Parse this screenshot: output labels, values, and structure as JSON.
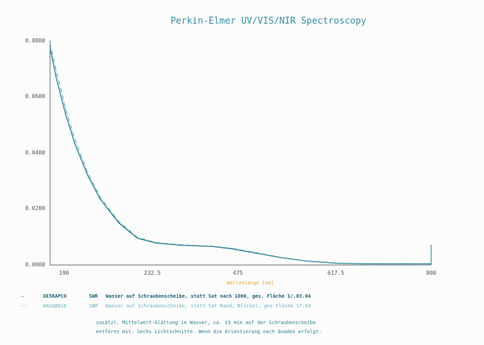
{
  "chart_data": {
    "type": "line",
    "title": "Perkin-Elmer UV/VIS/NIR Spectroscopy",
    "xlabel": "Wellenlänge [nm]",
    "ylabel": "",
    "xlim": [
      190,
      800
    ],
    "ylim": [
      0,
      0.08
    ],
    "x_ticks": [
      "190",
      "232.5",
      "475",
      "617.5",
      "800"
    ],
    "y_ticks": [
      "0.0000",
      "0.0200",
      "0.0400",
      "0.0600",
      "0.0800"
    ],
    "grid": false,
    "series": [
      {
        "name": "",
        "color": "#1f6f8b",
        "x": [
          190,
          200,
          215,
          230,
          250,
          270,
          300,
          330,
          360,
          400,
          450,
          480,
          520,
          560,
          600,
          650,
          700,
          750,
          800
        ],
        "y": [
          0.0772,
          0.0665,
          0.0535,
          0.043,
          0.032,
          0.0235,
          0.015,
          0.0095,
          0.0078,
          0.007,
          0.0066,
          0.0058,
          0.0042,
          0.0026,
          0.0014,
          0.0006,
          0.0004,
          0.0004,
          0.0004
        ]
      },
      {
        "name": "",
        "color": "#5aa8b8",
        "x": [
          190,
          200,
          215,
          230,
          250,
          270,
          300,
          330,
          360,
          400,
          450,
          480,
          520,
          560,
          600,
          650,
          700,
          750,
          800
        ],
        "y": [
          0.079,
          0.069,
          0.0555,
          0.0445,
          0.033,
          0.0242,
          0.0155,
          0.0098,
          0.008,
          0.0072,
          0.0067,
          0.006,
          0.0044,
          0.0027,
          0.0015,
          0.0007,
          0.0005,
          0.0005,
          0.0005
        ]
      }
    ],
    "annotations": [
      {
        "x": 800,
        "y": 0.006,
        "text": ""
      }
    ]
  },
  "legend": {
    "entries": [
      {
        "marker": "—",
        "id": "DE5RAPCO",
        "tag": "SWR",
        "text": "Wasser auf Schraubenscheibe, statt Sat nach 1000, ges. Fläche 1/.03.04",
        "color": "#1f5f78"
      },
      {
        "marker": "-·-",
        "id": "WASABESE",
        "tag": "SBR",
        "text": "Wasser auf Schraubenscheibe, statt Sat Rand, Blickel, ges Fläche 17.03",
        "color": "#6ab1c2"
      }
    ],
    "notes": [
      "zusätzl. Mittelwert-Glättung in Wasser, ca. 15 min auf der Schraubenscheibe",
      "entfernt mit. Sechs Lichtschnitte. Wenn die Orientierung nach Quaden erfolgt."
    ]
  }
}
